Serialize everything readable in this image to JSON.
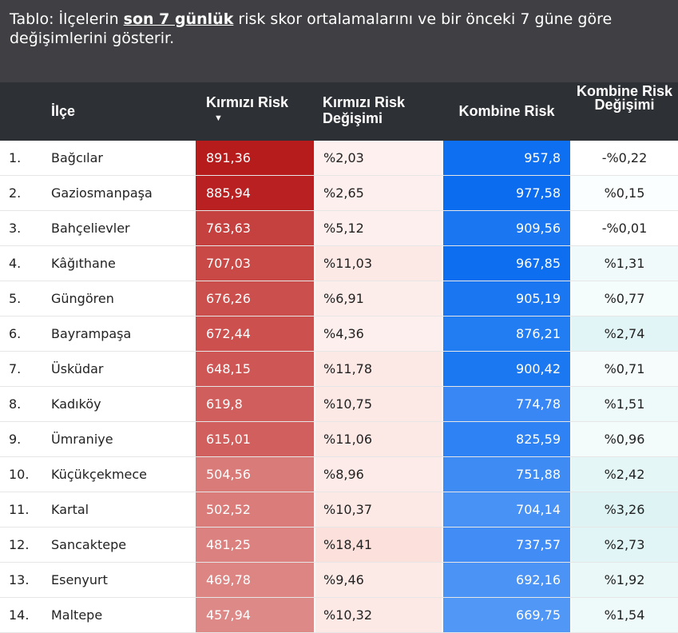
{
  "caption": {
    "before": "Tablo: İlçelerin ",
    "bold": "son 7 günlük",
    "after": " risk skor ortalamalarını ve bir önceki 7 güne göre değişimlerini gösterir."
  },
  "headers": {
    "ilce": "İlçe",
    "kirmizi_risk": "Kırmızı Risk",
    "sort_arrow": "▼",
    "kirmizi_degisim": "Kırmızı Risk Değişimi",
    "kombine_risk": "Kombine Risk",
    "kombine_degisim": "Kombine Risk Değişimi"
  },
  "rows": [
    {
      "rank": "1.",
      "ilce": "Bağcılar",
      "kirmizi": "891,36",
      "kdeg": "%2,03",
      "kombine": "957,8",
      "kdeg2": "-%0,22",
      "c_kir": "#b71c1c",
      "c_kdeg": "#fdf0ee",
      "c_kom": "#0e6ff0",
      "c_kdeg2": "#ffffff"
    },
    {
      "rank": "2.",
      "ilce": "Gaziosmanpaşa",
      "kirmizi": "885,94",
      "kdeg": "%2,65",
      "kombine": "977,58",
      "kdeg2": "%0,15",
      "c_kir": "#b92022",
      "c_kdeg": "#fdefed",
      "c_kom": "#0b6cef",
      "c_kdeg2": "#fbfefe"
    },
    {
      "rank": "3.",
      "ilce": "Bahçelievler",
      "kirmizi": "763,63",
      "kdeg": "%5,12",
      "kombine": "909,56",
      "kdeg2": "-%0,01",
      "c_kir": "#c54140",
      "c_kdeg": "#fdefed",
      "c_kom": "#1a76f1",
      "c_kdeg2": "#ffffff"
    },
    {
      "rank": "4.",
      "ilce": "Kâğıthane",
      "kirmizi": "707,03",
      "kdeg": "%11,03",
      "kombine": "967,85",
      "kdeg2": "%1,31",
      "c_kir": "#c94947",
      "c_kdeg": "#fce9e6",
      "c_kom": "#0d6ef0",
      "c_kdeg2": "#f0fafa"
    },
    {
      "rank": "5.",
      "ilce": "Güngören",
      "kirmizi": "676,26",
      "kdeg": "%6,91",
      "kombine": "905,19",
      "kdeg2": "%0,77",
      "c_kir": "#cb4f4d",
      "c_kdeg": "#fdedea",
      "c_kom": "#1b77f1",
      "c_kdeg2": "#f5fcfc"
    },
    {
      "rank": "6.",
      "ilce": "Bayrampaşa",
      "kirmizi": "672,44",
      "kdeg": "%4,36",
      "kombine": "876,21",
      "kdeg2": "%2,74",
      "c_kir": "#cc504e",
      "c_kdeg": "#fdefed",
      "c_kom": "#227cf2",
      "c_kdeg2": "#e2f5f6"
    },
    {
      "rank": "7.",
      "ilce": "Üsküdar",
      "kirmizi": "648,15",
      "kdeg": "%11,78",
      "kombine": "900,42",
      "kdeg2": "%0,71",
      "c_kir": "#ce5755",
      "c_kdeg": "#fce8e5",
      "c_kom": "#1c78f1",
      "c_kdeg2": "#f6fcfc"
    },
    {
      "rank": "8.",
      "ilce": "Kadıköy",
      "kirmizi": "619,8",
      "kdeg": "%10,75",
      "kombine": "774,78",
      "kdeg2": "%1,51",
      "c_kir": "#d05e5c",
      "c_kdeg": "#fce9e6",
      "c_kom": "#3987f4",
      "c_kdeg2": "#eef9fa"
    },
    {
      "rank": "9.",
      "ilce": "Ümraniye",
      "kirmizi": "615,01",
      "kdeg": "%11,06",
      "kombine": "825,59",
      "kdeg2": "%0,96",
      "c_kir": "#d05f5d",
      "c_kdeg": "#fce9e6",
      "c_kom": "#2e82f3",
      "c_kdeg2": "#f3fbfb"
    },
    {
      "rank": "10.",
      "ilce": "Küçükçekmece",
      "kirmizi": "504,56",
      "kdeg": "%8,96",
      "kombine": "751,88",
      "kdeg2": "%2,42",
      "c_kir": "#d97b79",
      "c_kdeg": "#fcebe8",
      "c_kom": "#3e8bf4",
      "c_kdeg2": "#e5f6f7"
    },
    {
      "rank": "11.",
      "ilce": "Kartal",
      "kirmizi": "502,52",
      "kdeg": "%10,37",
      "kombine": "704,14",
      "kdeg2": "%3,26",
      "c_kir": "#d97c7a",
      "c_kdeg": "#fce9e6",
      "c_kom": "#4891f5",
      "c_kdeg2": "#ddf3f4"
    },
    {
      "rank": "12.",
      "ilce": "Sancaktepe",
      "kirmizi": "481,25",
      "kdeg": "%18,41",
      "kombine": "737,57",
      "kdeg2": "%2,73",
      "c_kir": "#db8280",
      "c_kdeg": "#fbe0db",
      "c_kom": "#418df5",
      "c_kdeg2": "#e2f5f6"
    },
    {
      "rank": "13.",
      "ilce": "Esenyurt",
      "kirmizi": "469,78",
      "kdeg": "%9,46",
      "kombine": "692,16",
      "kdeg2": "%1,92",
      "c_kir": "#dc8583",
      "c_kdeg": "#fceae7",
      "c_kom": "#4b93f5",
      "c_kdeg2": "#eaf8f8"
    },
    {
      "rank": "14.",
      "ilce": "Maltepe",
      "kirmizi": "457,94",
      "kdeg": "%10,32",
      "kombine": "669,75",
      "kdeg2": "%1,54",
      "c_kir": "#dd8987",
      "c_kdeg": "#fce9e6",
      "c_kom": "#5097f6",
      "c_kdeg2": "#eef9fa"
    }
  ]
}
